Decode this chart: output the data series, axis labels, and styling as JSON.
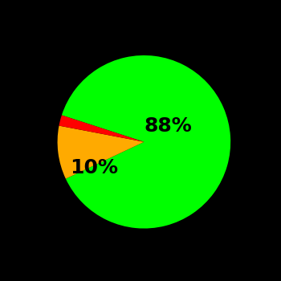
{
  "slices": [
    88,
    10,
    2
  ],
  "colors": [
    "#00ff00",
    "#ffaa00",
    "#ff0000"
  ],
  "labels": [
    "88%",
    "10%",
    ""
  ],
  "background_color": "#000000",
  "label_fontsize": 18,
  "label_fontweight": "bold",
  "startangle": 162,
  "counterclock": false
}
